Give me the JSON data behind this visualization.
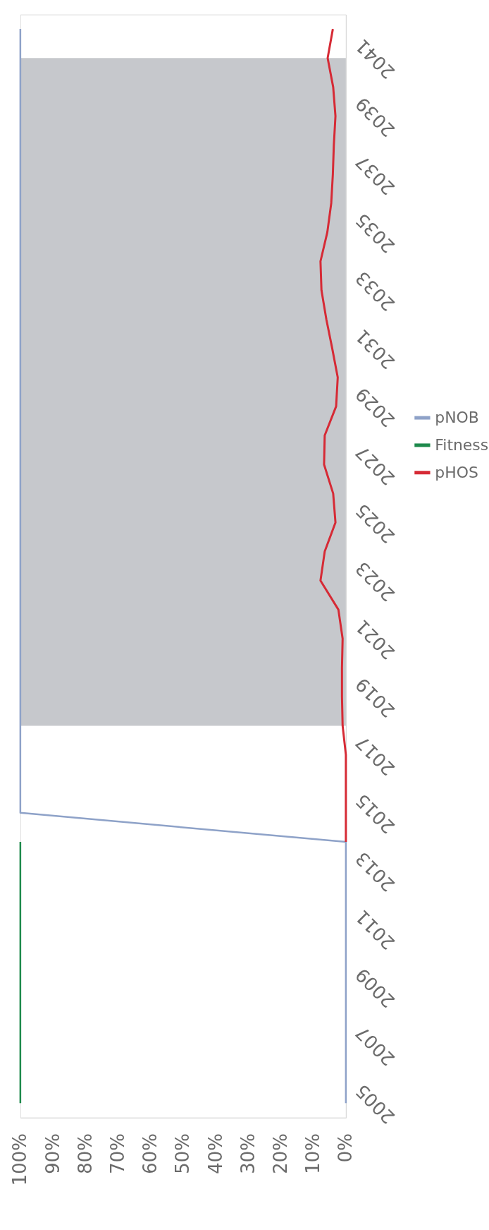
{
  "chart_data": {
    "type": "line",
    "xlim": [
      100,
      0
    ],
    "xticks": [
      {
        "value": 100,
        "label": "100%"
      },
      {
        "value": 90,
        "label": "90%"
      },
      {
        "value": 80,
        "label": "80%"
      },
      {
        "value": 70,
        "label": "70%"
      },
      {
        "value": 60,
        "label": "60%"
      },
      {
        "value": 50,
        "label": "50%"
      },
      {
        "value": 40,
        "label": "40%"
      },
      {
        "value": 30,
        "label": "30%"
      },
      {
        "value": 20,
        "label": "20%"
      },
      {
        "value": 10,
        "label": "10%"
      },
      {
        "value": 0,
        "label": "0%"
      }
    ],
    "ylim": [
      2004.5,
      2042.5
    ],
    "yticks": [
      2005,
      2007,
      2009,
      2011,
      2013,
      2015,
      2017,
      2019,
      2021,
      2023,
      2025,
      2027,
      2029,
      2031,
      2033,
      2035,
      2037,
      2039,
      2041
    ],
    "series": [
      {
        "name": "pHOS",
        "color": "#d62a35",
        "x": [
          0,
          0,
          0,
          0,
          1,
          1.2,
          1.2,
          1,
          2.3,
          7.8,
          6.5,
          3.2,
          3.9,
          6.7,
          6.5,
          3,
          2.5,
          4.2,
          6,
          7.5,
          7.8,
          5.7,
          4.5,
          4,
          3.7,
          3.2,
          3.9,
          5.6,
          4
        ],
        "values": [
          2014,
          2015,
          2016,
          2017,
          2018,
          2019,
          2020,
          2021,
          2022,
          2023,
          2024,
          2025,
          2026,
          2027,
          2028,
          2029,
          2030,
          2031,
          2032,
          2033,
          2034,
          2035,
          2036,
          2037,
          2038,
          2039,
          2040,
          2041,
          2042
        ]
      },
      {
        "name": "Fitness",
        "color": "#1e8a4c",
        "x": [
          100,
          100,
          100,
          100,
          100,
          100,
          100,
          100,
          100,
          100
        ],
        "values": [
          2005,
          2006,
          2007,
          2008,
          2009,
          2010,
          2011,
          2012,
          2013,
          2014
        ]
      },
      {
        "name": "pNOB",
        "color": "#8ea2c8",
        "x": [
          0,
          0,
          0,
          0,
          0,
          0,
          0,
          0,
          0,
          0,
          100,
          100,
          100,
          100,
          100,
          100,
          100,
          100,
          100,
          100,
          100,
          100,
          100,
          100,
          100,
          100,
          100,
          100,
          100,
          100,
          100,
          100,
          100,
          100,
          100,
          100,
          100,
          100
        ],
        "values": [
          2005,
          2006,
          2007,
          2008,
          2009,
          2010,
          2011,
          2012,
          2013,
          2014,
          2015,
          2016,
          2017,
          2018,
          2019,
          2020,
          2021,
          2022,
          2023,
          2024,
          2025,
          2026,
          2027,
          2028,
          2029,
          2030,
          2031,
          2032,
          2033,
          2034,
          2035,
          2036,
          2037,
          2038,
          2039,
          2040,
          2041,
          2042
        ]
      }
    ],
    "bands": [
      {
        "axis": "y",
        "from": 2018,
        "to": 2041,
        "color": "#c6c8cc"
      }
    ],
    "legend": "right",
    "grid": false
  }
}
